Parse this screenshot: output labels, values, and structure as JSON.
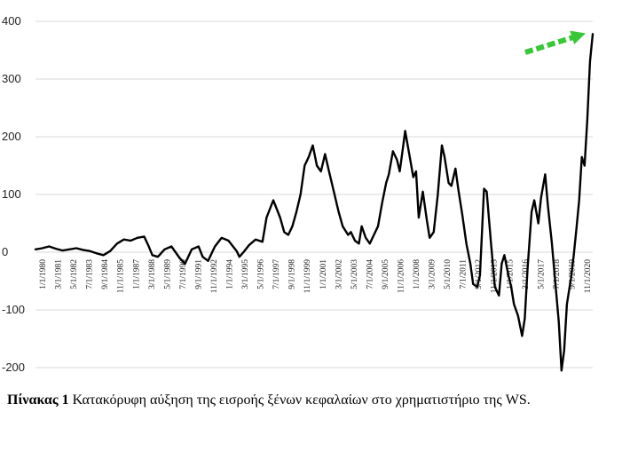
{
  "chart_data": {
    "type": "line",
    "title": "",
    "xlabel": "",
    "ylabel": "",
    "ylim": [
      -200,
      400
    ],
    "yticks": [
      400,
      300,
      200,
      100,
      0,
      -100,
      -200
    ],
    "grid": true,
    "trend_arrow_color": "#37c837",
    "tick_labels": [
      "1/1/1980",
      "3/1/1981",
      "5/1/1982",
      "7/1/1983",
      "9/1/1984",
      "11/1/1985",
      "1/1/1987",
      "3/1/1988",
      "5/1/1989",
      "7/1/1990",
      "9/1/1991",
      "11/1/1992",
      "1/1/1994",
      "3/1/1995",
      "5/1/1996",
      "7/1/1997",
      "9/1/1998",
      "11/1/1999",
      "1/1/2001",
      "3/1/2002",
      "5/1/2003",
      "7/1/2004",
      "9/1/2005",
      "11/1/2006",
      "1/1/2008",
      "3/1/2009",
      "5/1/2010",
      "7/1/2011",
      "9/1/2012",
      "11/1/2013",
      "1/1/2015",
      "3/1/2016",
      "5/1/2017",
      "7/1/2018",
      "9/1/2019",
      "11/1/2020"
    ],
    "series": [
      {
        "x": [
          1980.0,
          1980.5,
          1981.0,
          1981.5,
          1982.0,
          1982.5,
          1983.0,
          1983.5,
          1984.0,
          1984.5,
          1985.0,
          1985.5,
          1986.0,
          1986.5,
          1987.0,
          1987.5,
          1988.0,
          1988.3,
          1988.6,
          1989.0,
          1989.5,
          1990.0,
          1990.3,
          1990.6,
          1991.0,
          1991.5,
          1992.0,
          1992.3,
          1992.7,
          1993.2,
          1993.7,
          1994.2,
          1994.8,
          1995.0,
          1995.3,
          1995.7,
          1996.2,
          1996.7,
          1997.0,
          1997.5,
          1998.0,
          1998.3,
          1998.6,
          1998.9,
          1999.2,
          1999.5,
          1999.8,
          2000.1,
          2000.4,
          2000.7,
          2001.0,
          2001.3,
          2001.6,
          2002.0,
          2002.3,
          2002.6,
          2003.0,
          2003.2,
          2003.5,
          2003.8,
          2004.0,
          2004.3,
          2004.6,
          2004.9,
          2005.2,
          2005.5,
          2005.8,
          2006.0,
          2006.3,
          2006.6,
          2006.8,
          2007.0,
          2007.2,
          2007.5,
          2007.8,
          2008.0,
          2008.2,
          2008.5,
          2008.8,
          2009.0,
          2009.3,
          2009.6,
          2009.9,
          2010.1,
          2010.4,
          2010.6,
          2010.9,
          2011.1,
          2011.4,
          2011.7,
          2012.0,
          2012.2,
          2012.5,
          2012.7,
          2013.0,
          2013.2,
          2013.5,
          2013.8,
          2014.1,
          2014.3,
          2014.5,
          2014.8,
          2015.0,
          2015.2,
          2015.5,
          2015.8,
          2016.0,
          2016.2,
          2016.5,
          2016.7,
          2017.0,
          2017.2,
          2017.5,
          2017.7,
          2018.0,
          2018.2,
          2018.5,
          2018.7,
          2018.9,
          2019.1,
          2019.4,
          2019.6,
          2019.8,
          2020.0,
          2020.2,
          2020.4,
          2020.6,
          2020.8,
          2021.0
        ],
        "values": [
          5,
          7,
          10,
          6,
          3,
          5,
          7,
          4,
          2,
          -2,
          -5,
          2,
          15,
          22,
          20,
          25,
          27,
          12,
          -5,
          -8,
          5,
          10,
          0,
          -10,
          -20,
          5,
          10,
          -8,
          -15,
          10,
          25,
          20,
          2,
          -8,
          0,
          12,
          22,
          18,
          60,
          90,
          60,
          35,
          30,
          45,
          70,
          100,
          150,
          165,
          185,
          150,
          140,
          170,
          140,
          100,
          70,
          45,
          30,
          35,
          20,
          15,
          45,
          25,
          15,
          30,
          45,
          85,
          120,
          135,
          175,
          160,
          140,
          175,
          210,
          170,
          130,
          140,
          60,
          105,
          55,
          25,
          35,
          100,
          185,
          165,
          120,
          115,
          145,
          110,
          65,
          15,
          -20,
          -55,
          -60,
          -40,
          110,
          105,
          20,
          -60,
          -75,
          -20,
          -5,
          -40,
          -60,
          -90,
          -110,
          -145,
          -115,
          -30,
          70,
          90,
          50,
          95,
          135,
          80,
          15,
          -40,
          -120,
          -205,
          -170,
          -90,
          -45,
          -5,
          40,
          90,
          165,
          150,
          230,
          330,
          378
        ]
      }
    ]
  },
  "caption": {
    "label": "Πίνακας 1",
    "text": " Κατακόρυφη αύξηση της εισροής ξένων κεφαλαίων στο χρηματιστήριο της WS."
  }
}
